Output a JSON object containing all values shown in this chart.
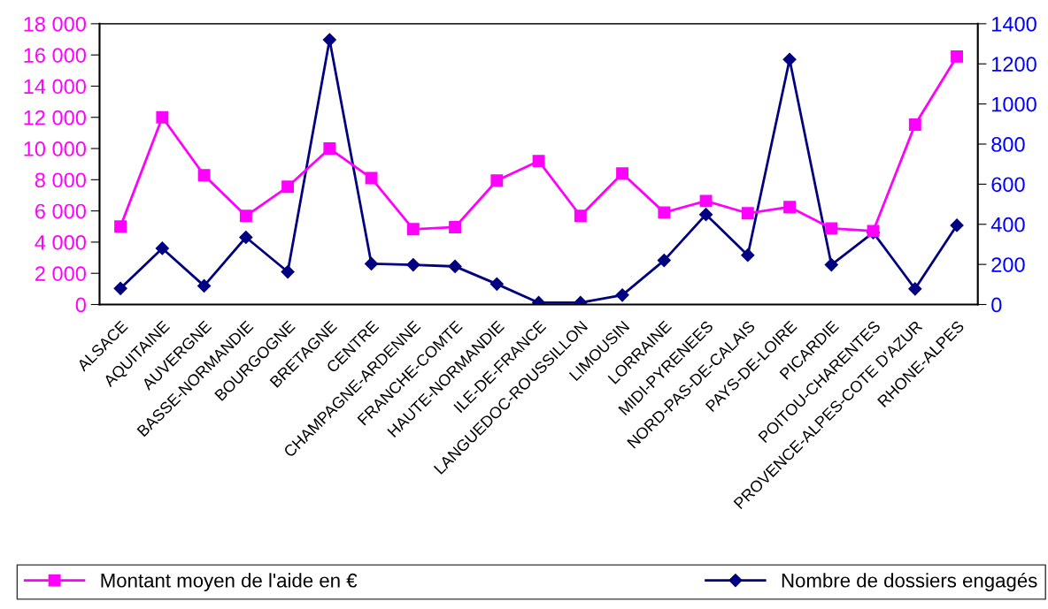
{
  "chart_data": {
    "type": "line",
    "categories": [
      "ALSACE",
      "AQUITAINE",
      "AUVERGNE",
      "BASSE-NORMANDIE",
      "BOURGOGNE",
      "BRETAGNE",
      "CENTRE",
      "CHAMPAGNE-ARDENNE",
      "FRANCHE-COMTE",
      "HAUTE-NORMANDIE",
      "ILE-DE-FRANCE",
      "LANGUEDOC-ROUSSILLON",
      "LIMOUSIN",
      "LORRAINE",
      "MIDI-PYRENEES",
      "NORD-PAS-DE-CALAIS",
      "PAYS-DE-LOIRE",
      "PICARDIE",
      "POITOU-CHARENTES",
      "PROVENCE-ALPES-COTE D'AZUR",
      "RHONE-ALPES"
    ],
    "series": [
      {
        "name": "Montant moyen de l'aide en €",
        "color": "#ff00ff",
        "marker": "square",
        "values": [
          5000,
          12000,
          8290,
          5680,
          7550,
          10000,
          8100,
          4830,
          4960,
          7950,
          9200,
          5680,
          8400,
          5900,
          6640,
          5850,
          6250,
          4880,
          4710,
          11530,
          15900
        ]
      },
      {
        "name": "Nombre de dossiers engagés",
        "color": "#000080",
        "marker": "diamond",
        "axis": "y2",
        "values": [
          80,
          280,
          93,
          335,
          163,
          1320,
          203,
          198,
          190,
          102,
          9,
          9,
          47,
          220,
          449,
          246,
          1222,
          198,
          359,
          78,
          395
        ]
      }
    ],
    "ylim": [
      0,
      18000
    ],
    "yticks": [
      {
        "value": 0,
        "label": "0"
      },
      {
        "value": 2000,
        "label": "2 000"
      },
      {
        "value": 4000,
        "label": "4 000"
      },
      {
        "value": 6000,
        "label": "6 000"
      },
      {
        "value": 8000,
        "label": "8 000"
      },
      {
        "value": 10000,
        "label": "10 000"
      },
      {
        "value": 12000,
        "label": "12 000"
      },
      {
        "value": 14000,
        "label": "14 000"
      },
      {
        "value": 16000,
        "label": "16 000"
      },
      {
        "value": 18000,
        "label": "18 000"
      }
    ],
    "y2lim": [
      0,
      1400
    ],
    "y2ticks": [
      0,
      200,
      400,
      600,
      800,
      1000,
      1200,
      1400
    ],
    "grid": false,
    "legend": "bottom"
  }
}
